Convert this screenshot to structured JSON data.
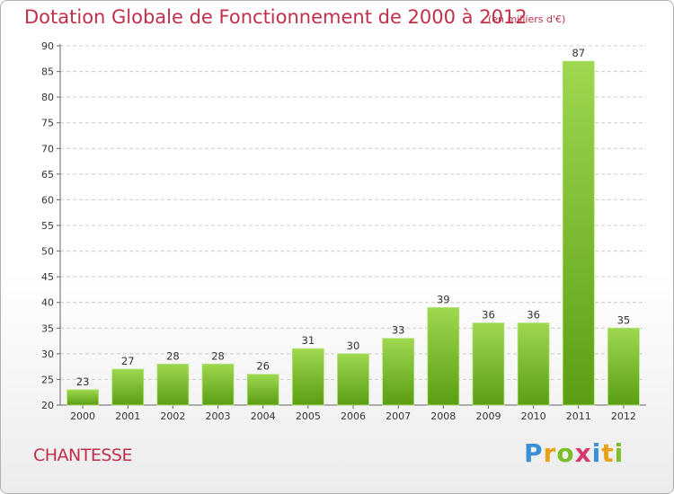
{
  "header": {
    "title": "Dotation Globale de Fonctionnement de 2000 à 2012",
    "unit": "(en milliers d'€)"
  },
  "footer": {
    "commune": "CHANTESSE",
    "logo_text": "Proxiti"
  },
  "colors": {
    "title": "#c0304a",
    "bar_top": "#9ed84e",
    "bar_bottom": "#5a9e12",
    "grid": "#cccccc"
  },
  "chart_data": {
    "type": "bar",
    "title": "Dotation Globale de Fonctionnement de 2000 à 2012",
    "subtitle": "(en milliers d'€)",
    "xlabel": "",
    "ylabel": "",
    "categories": [
      "2000",
      "2001",
      "2002",
      "2003",
      "2004",
      "2005",
      "2006",
      "2007",
      "2008",
      "2009",
      "2010",
      "2011",
      "2012"
    ],
    "values": [
      23,
      27,
      28,
      28,
      26,
      31,
      30,
      33,
      39,
      36,
      36,
      87,
      35
    ],
    "ylim": [
      20,
      90
    ],
    "yticks": [
      20,
      25,
      30,
      35,
      40,
      45,
      50,
      55,
      60,
      65,
      70,
      75,
      80,
      85,
      90
    ],
    "grid": true,
    "legend": "none"
  }
}
